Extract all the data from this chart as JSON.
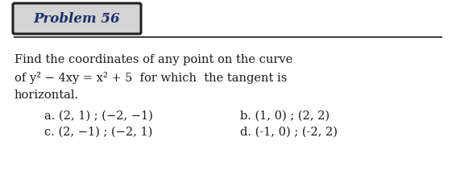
{
  "title": "Problem 56",
  "line1": "Find the coordinates of any point on the curve",
  "line2": "of y² − 4xy = x² + 5  for which  the tangent is",
  "line3": "horizontal.",
  "optA": "a. (2, 1) ; (−2, −1)",
  "optB": "b. (1, 0) ; (2, 2)",
  "optC": "c. (2, −1) ; (−2, 1)",
  "optD": "d. (-1, 0) ; (-2, 2)",
  "text_color": "#1a1a1a",
  "title_color": "#1c2f6b",
  "box_edge": "#222222",
  "box_face": "#d8d8d8",
  "line_color": "#555555",
  "body_fontsize": 10.5,
  "title_fontsize": 12,
  "opt_fontsize": 10.5
}
